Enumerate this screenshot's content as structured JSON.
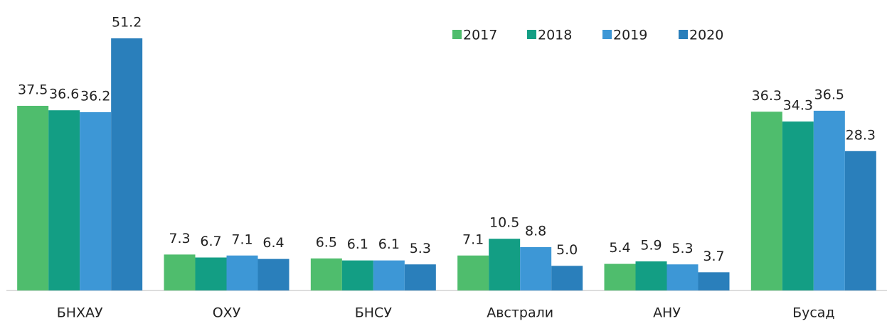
{
  "chart_data": {
    "type": "bar",
    "categories": [
      "БНХАУ",
      "ОХУ",
      "БНСУ",
      "Австрали",
      "АНУ",
      "Бусад"
    ],
    "series": [
      {
        "name": "2017",
        "color": "#4fbd6d",
        "values": [
          37.5,
          7.3,
          6.5,
          7.1,
          5.4,
          36.3
        ]
      },
      {
        "name": "2018",
        "color": "#139e84",
        "values": [
          36.6,
          6.7,
          6.1,
          10.5,
          5.9,
          34.3
        ]
      },
      {
        "name": "2019",
        "color": "#3d97d6",
        "values": [
          36.2,
          7.1,
          6.1,
          8.8,
          5.3,
          36.5
        ]
      },
      {
        "name": "2020",
        "color": "#2a7fbb",
        "values": [
          51.2,
          6.4,
          5.3,
          5.0,
          3.7,
          28.3
        ],
        "value_labels": [
          "51.2",
          "6.4",
          "5.3",
          "5.0",
          "3.7",
          "28.3"
        ]
      }
    ],
    "legend": "top-right"
  }
}
